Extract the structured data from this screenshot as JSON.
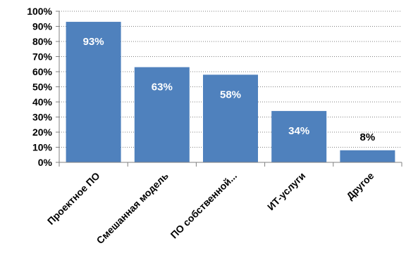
{
  "chart_data": {
    "type": "bar",
    "title": "",
    "xlabel": "",
    "ylabel": "",
    "ylim": [
      0,
      100
    ],
    "y_tick_step": 10,
    "y_tick_format": "percent",
    "grid": "horizontal-dotted",
    "legend": "none",
    "categories": [
      "Проектное ПО",
      "Смешанная модель",
      "ПО собственной...",
      "ИТ-услуги",
      "Другое"
    ],
    "values": [
      93,
      63,
      58,
      34,
      8
    ],
    "data_labels": [
      "93%",
      "63%",
      "58%",
      "34%",
      "8%"
    ],
    "colors": {
      "bar": "#4f81bd",
      "label_inside": "#ffffff",
      "label_outside": "#000000",
      "grid": "#808080",
      "axis": "#808080"
    }
  }
}
